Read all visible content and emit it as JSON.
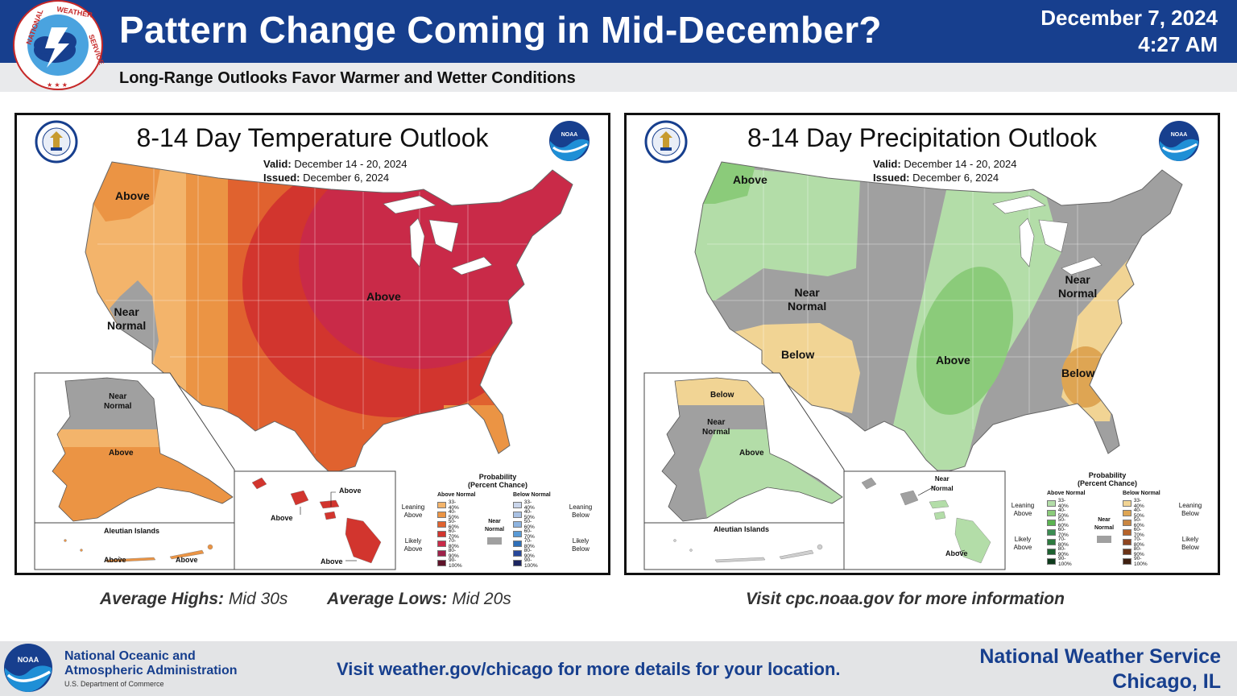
{
  "header": {
    "title": "Pattern Change Coming in Mid-December?",
    "date": "December 7, 2024",
    "time": "4:27 AM",
    "subtitle": "Long-Range Outlooks Favor Warmer and Wetter Conditions",
    "logo_text": "NATIONAL WEATHER SERVICE",
    "brand_color": "#173f8e"
  },
  "temperature_map": {
    "title": "8-14 Day Temperature Outlook",
    "valid_label": "Valid:",
    "valid_value": "December 14 - 20, 2024",
    "issued_label": "Issued:",
    "issued_value": "December 6, 2024",
    "region_labels": {
      "west_above": "Above",
      "near_normal_line1": "Near",
      "near_normal_line2": "Normal",
      "central_above": "Above",
      "alaska_near_line1": "Near",
      "alaska_near_line2": "Normal",
      "alaska_above": "Above",
      "aleutian_title": "Aleutian Islands",
      "aleutian_above_1": "Above",
      "aleutian_above_2": "Above",
      "hawaii_above_1": "Above",
      "hawaii_above_2": "Above",
      "hawaii_above_3": "Above"
    },
    "colors": {
      "above_33_40": "#f3b46b",
      "above_40_50": "#eb9444",
      "above_50_60": "#e0622f",
      "above_60_70": "#d2352e",
      "above_70_80": "#c92a48",
      "near_normal": "#a0a0a0"
    }
  },
  "precipitation_map": {
    "title": "8-14 Day Precipitation Outlook",
    "valid_label": "Valid:",
    "valid_value": "December 14 - 20, 2024",
    "issued_label": "Issued:",
    "issued_value": "December 6, 2024",
    "region_labels": {
      "nw_above": "Above",
      "near_normal_west_line1": "Near",
      "near_normal_west_line2": "Normal",
      "below_sw": "Below",
      "central_above": "Above",
      "near_normal_east_line1": "Near",
      "near_normal_east_line2": "Normal",
      "below_se": "Below",
      "alaska_below": "Below",
      "alaska_near_line1": "Near",
      "alaska_near_line2": "Normal",
      "alaska_above": "Above",
      "aleutian_title": "Aleutian Islands",
      "hawaii_near_line1": "Near",
      "hawaii_near_line2": "Normal",
      "hawaii_above": "Above"
    },
    "colors": {
      "above_33_40": "#b3dda8",
      "above_40_50": "#8bcb7a",
      "below_33_40": "#f1d494",
      "below_40_50": "#dea553",
      "near_normal": "#a0a0a0"
    }
  },
  "legend": {
    "title_line1": "Probability",
    "title_line2": "(Percent Chance)",
    "above_head": "Above Normal",
    "below_head": "Below Normal",
    "leaning_above": "Leaning Above",
    "likely_above": "Likely Above",
    "leaning_below": "Leaning Below",
    "likely_below": "Likely Below",
    "near_normal": "Near Normal",
    "percents": [
      "33-40%",
      "40-50%",
      "50-60%",
      "60-70%",
      "70-80%",
      "80-90%",
      "90-100%"
    ],
    "temp_above_colors": [
      "#f3b46b",
      "#eb9444",
      "#e0622f",
      "#d2352e",
      "#c92a48",
      "#9e2149",
      "#5e1329"
    ],
    "temp_below_colors": [
      "#c9d5ea",
      "#a9c1e3",
      "#8eb4e0",
      "#5a9ad6",
      "#2f6fb8",
      "#27479a",
      "#1c2560"
    ],
    "precip_above_colors": [
      "#b3dda8",
      "#8bcb7a",
      "#5bb451",
      "#3b8d52",
      "#2d7a3f",
      "#1d6130",
      "#0e3b1c"
    ],
    "precip_below_colors": [
      "#f1d494",
      "#dea553",
      "#c98642",
      "#b5632a",
      "#8e4621",
      "#6b3418",
      "#3e1f10"
    ],
    "near_normal_color": "#a0a0a0"
  },
  "captions": {
    "highs_label": "Average Highs:",
    "highs_value": "Mid 30s",
    "lows_label": "Average Lows:",
    "lows_value": "Mid 20s",
    "cpc_link": "Visit cpc.noaa.gov for more information"
  },
  "footer": {
    "noaa_line1": "National Oceanic and",
    "noaa_line2": "Atmospheric Administration",
    "noaa_dept": "U.S. Department of Commerce",
    "noaa_logo_text": "NOAA",
    "visit": "Visit weather.gov/chicago for more details for your location.",
    "office_line1": "National Weather Service",
    "office_line2": "Chicago, IL"
  }
}
